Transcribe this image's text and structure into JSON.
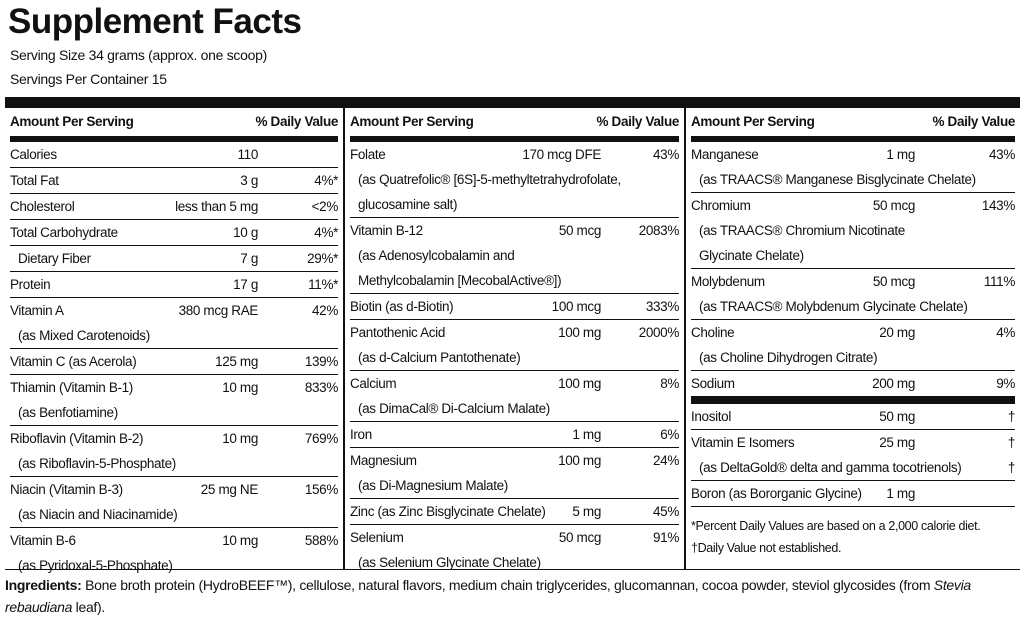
{
  "header": {
    "title": "Supplement Facts",
    "serving_size": "Serving Size 34 grams (approx. one scoop)",
    "servings": "Servings Per Container 15"
  },
  "columns": [
    {
      "head_amount": "Amount Per Serving",
      "head_dv": "% Daily Value",
      "rows": [
        {
          "name": "Calories",
          "amount": "110",
          "dv": ""
        },
        {
          "name": "Total Fat",
          "amount": "3 g",
          "dv": "4%*"
        },
        {
          "name": "Cholesterol",
          "amount": "less than 5 mg",
          "dv": "<2%"
        },
        {
          "name": "Total Carbohydrate",
          "amount": "10 g",
          "dv": "4%*"
        },
        {
          "name": "Dietary Fiber",
          "amount": "7 g",
          "dv": "29%*",
          "indent": true
        },
        {
          "name": "Protein",
          "amount": "17 g",
          "dv": "11%*"
        },
        {
          "name": "Vitamin A",
          "amount": "380 mcg RAE",
          "dv": "42%",
          "sub": [
            "(as Mixed Carotenoids)"
          ]
        },
        {
          "name": "Vitamin C (as Acerola)",
          "amount": "125 mg",
          "dv": "139%"
        },
        {
          "name": "Thiamin (Vitamin B-1)",
          "amount": "10 mg",
          "dv": "833%",
          "sub": [
            "(as Benfotiamine)"
          ]
        },
        {
          "name": "Riboflavin (Vitamin B-2)",
          "amount": "10 mg",
          "dv": "769%",
          "sub": [
            "(as Riboflavin-5-Phosphate)"
          ]
        },
        {
          "name": "Niacin (Vitamin B-3)",
          "amount": "25 mg NE",
          "dv": "156%",
          "sub": [
            "(as Niacin and Niacinamide)"
          ]
        },
        {
          "name": "Vitamin B-6",
          "amount": "10 mg",
          "dv": "588%",
          "sub": [
            "(as Pyridoxal-5-Phosphate)"
          ],
          "last": true
        }
      ]
    },
    {
      "head_amount": "Amount Per Serving",
      "head_dv": "% Daily Value",
      "rows": [
        {
          "name": "Folate",
          "amount": "170 mcg DFE",
          "dv": "43%",
          "sub": [
            "(as Quatrefolic® [6S]-5-methyltetrahydrofolate,",
            "glucosamine salt)"
          ]
        },
        {
          "name": "Vitamin B-12",
          "amount": "50 mcg",
          "dv": "2083%",
          "sub": [
            "(as Adenosylcobalamin and",
            "Methylcobalamin [MecobalActive®])"
          ]
        },
        {
          "name": "Biotin (as d-Biotin)",
          "amount": "100 mcg",
          "dv": "333%"
        },
        {
          "name": "Pantothenic Acid",
          "amount": "100 mg",
          "dv": "2000%",
          "sub": [
            "(as d-Calcium Pantothenate)"
          ]
        },
        {
          "name": "Calcium",
          "amount": "100 mg",
          "dv": "8%",
          "sub": [
            "(as DimaCal® Di-Calcium Malate)"
          ]
        },
        {
          "name": "Iron",
          "amount": "1 mg",
          "dv": "6%"
        },
        {
          "name": "Magnesium",
          "amount": "100 mg",
          "dv": "24%",
          "sub": [
            "(as Di-Magnesium Malate)"
          ]
        },
        {
          "name": "Zinc (as Zinc Bisglycinate Chelate)",
          "amount": "5 mg",
          "dv": "45%"
        },
        {
          "name": "Selenium",
          "amount": "50 mcg",
          "dv": "91%",
          "sub": [
            "(as Selenium Glycinate Chelate)"
          ],
          "last": true
        }
      ]
    },
    {
      "head_amount": "Amount Per Serving",
      "head_dv": "% Daily Value",
      "rows": [
        {
          "name": "Manganese",
          "amount": "1 mg",
          "dv": "43%",
          "sub": [
            "(as TRAACS® Manganese Bisglycinate Chelate)"
          ]
        },
        {
          "name": "Chromium",
          "amount": "50 mcg",
          "dv": "143%",
          "sub": [
            "(as TRAACS® Chromium Nicotinate",
            "Glycinate Chelate)"
          ]
        },
        {
          "name": "Molybdenum",
          "amount": "50 mcg",
          "dv": "111%",
          "sub": [
            "(as TRAACS® Molybdenum Glycinate Chelate)"
          ]
        },
        {
          "name": "Choline",
          "amount": "20 mg",
          "dv": "4%",
          "sub": [
            "(as Choline Dihydrogen Citrate)"
          ]
        },
        {
          "name": "Sodium",
          "amount": "200 mg",
          "dv": "9%",
          "thick": true
        },
        {
          "name": "Inositol",
          "amount": "50 mg",
          "dv": "†"
        },
        {
          "name": "Vitamin E Isomers",
          "amount": "25 mg",
          "dv": "†",
          "sub": [
            "(as DeltaGold® delta and gamma tocotrienols)"
          ],
          "sub_dv": "†"
        },
        {
          "name": "Boron (as Bororganic Glycine)",
          "amount": "1 mg",
          "dv": ""
        }
      ],
      "footnotes": [
        "*Percent Daily Values are based on a 2,000 calorie diet.",
        "†Daily Value not established."
      ]
    }
  ],
  "ingredients": {
    "label": "Ingredients:",
    "text": " Bone broth protein (HydroBEEF™), cellulose, natural flavors, medium chain triglycerides, glucomannan, cocoa powder, steviol glycosides (from ",
    "italic": "Stevia rebaudiana",
    "end": " leaf)."
  }
}
